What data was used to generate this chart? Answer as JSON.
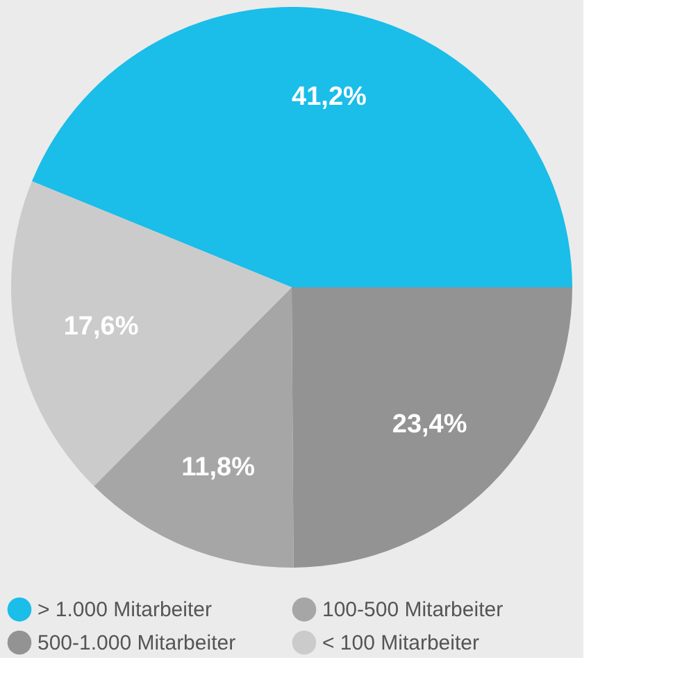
{
  "chart_data": {
    "type": "pie",
    "categories": [
      "> 1.000 Mitarbeiter",
      "500-1.000 Mitarbeiter",
      "100-500 Mitarbeiter",
      "< 100 Mitarbeiter"
    ],
    "values": [
      41.2,
      23.4,
      11.8,
      17.6
    ],
    "colors": [
      "#1bbde9",
      "#939393",
      "#a6a6a6",
      "#cbcbcb"
    ],
    "value_labels": [
      "41,2%",
      "23,4%",
      "11,8%",
      "17,6%"
    ],
    "legend": "bottom"
  }
}
